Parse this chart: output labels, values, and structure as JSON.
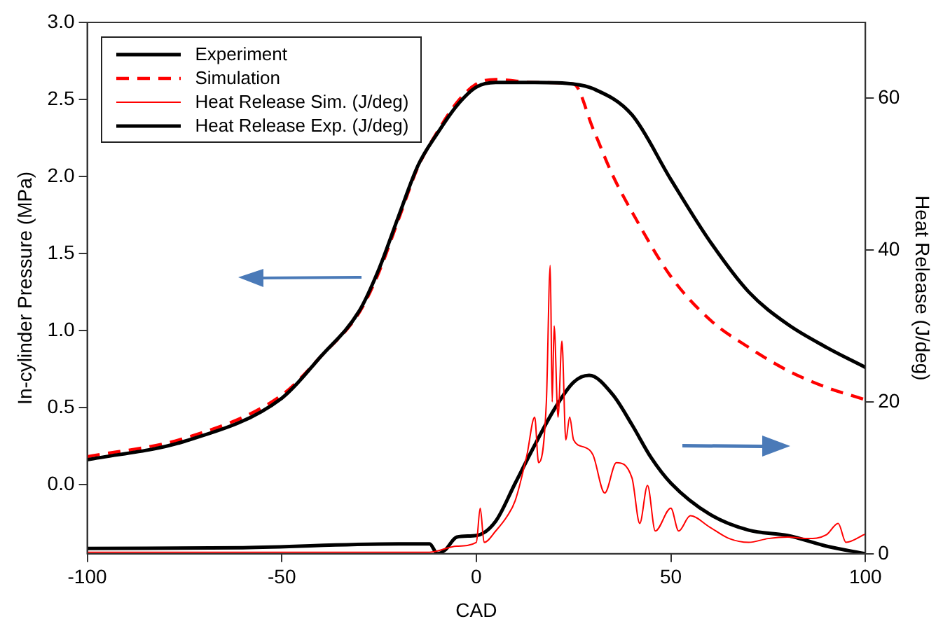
{
  "chart_data": {
    "type": "line",
    "xlabel": "CAD",
    "ylabel": "In-cylinder Pressure (MPa)",
    "y2label": "Heat Release (J/deg)",
    "xlim": [
      -100,
      100
    ],
    "xticks": [
      -100,
      -50,
      0,
      50,
      100
    ],
    "ylim": [
      -0.45,
      3.0
    ],
    "yticks": [
      {
        "value": 0,
        "label": "0.0"
      },
      0.5,
      {
        "value": 1,
        "label": "1.0"
      },
      1.5,
      {
        "value": 2,
        "label": "2.0"
      },
      2.5,
      {
        "value": 3,
        "label": "3.0"
      }
    ],
    "y2lim": [
      0,
      70
    ],
    "y2ticks": [
      0,
      20,
      40,
      60
    ],
    "grid": false,
    "legend": "top left",
    "marker": "none",
    "series": [
      {
        "name": "Experiment",
        "color": "#000000",
        "x": [
          -100,
          -75,
          -50,
          -40,
          -30,
          -25,
          -20,
          -15,
          -10,
          -5,
          0,
          5,
          15,
          25,
          30,
          40,
          50,
          60,
          70,
          80,
          90,
          100
        ],
        "values": [
          0.16,
          0.28,
          0.56,
          0.83,
          1.13,
          1.4,
          1.74,
          2.07,
          2.28,
          2.46,
          2.58,
          2.61,
          2.61,
          2.6,
          2.57,
          2.4,
          1.98,
          1.58,
          1.25,
          1.04,
          0.89,
          0.76
        ]
      },
      {
        "name": "Simulation",
        "color": "#ff0000",
        "line_style": "dashed",
        "x": [
          -100,
          -75,
          -50,
          -40,
          -30,
          -25,
          -20,
          -15,
          -10,
          -5,
          0,
          5,
          15,
          25,
          30,
          35,
          40,
          50,
          60,
          70,
          80,
          90,
          100
        ],
        "values": [
          0.18,
          0.3,
          0.58,
          0.83,
          1.12,
          1.38,
          1.72,
          2.06,
          2.29,
          2.48,
          2.6,
          2.63,
          2.61,
          2.6,
          2.31,
          2.01,
          1.77,
          1.35,
          1.07,
          0.89,
          0.74,
          0.63,
          0.55
        ]
      },
      {
        "name": "Heat Release Sim. (J/deg)",
        "color": "#ff0000",
        "axis": "y2",
        "x": [
          -100,
          -50,
          -12,
          -5,
          0,
          1,
          2,
          5,
          8,
          10,
          13,
          15,
          16,
          18,
          19,
          19.5,
          20,
          21,
          22,
          23,
          24,
          25,
          28,
          30,
          33,
          36,
          40,
          42,
          44,
          46,
          50,
          52,
          55,
          60,
          65,
          70,
          75,
          80,
          85,
          90,
          93,
          95,
          100
        ],
        "values": [
          0.2,
          0.2,
          0.2,
          1,
          1.5,
          6,
          1.5,
          3,
          5,
          7,
          13,
          18,
          12,
          20,
          38,
          20,
          30,
          18,
          28,
          15,
          18,
          15,
          14,
          13,
          8,
          12,
          10,
          4,
          9,
          3,
          6,
          3,
          5,
          3.5,
          2,
          1.5,
          2,
          2.2,
          2,
          2.5,
          4,
          1.5,
          2.6
        ]
      },
      {
        "name": "Heat Release Exp. (J/deg)",
        "color": "#000000",
        "axis": "y2",
        "x": [
          -100,
          -60,
          -20,
          -12,
          -10,
          -8,
          -5,
          0,
          5,
          10,
          15,
          20,
          25,
          29,
          35,
          40,
          45,
          50,
          60,
          70,
          80,
          90,
          100
        ],
        "values": [
          0.7,
          0.8,
          1.3,
          1.3,
          0,
          0.5,
          2.2,
          2.4,
          4.3,
          9.3,
          14.3,
          19,
          22.6,
          23.5,
          21,
          17,
          12.6,
          9.3,
          5.2,
          3.1,
          2.4,
          1,
          0
        ]
      }
    ]
  }
}
